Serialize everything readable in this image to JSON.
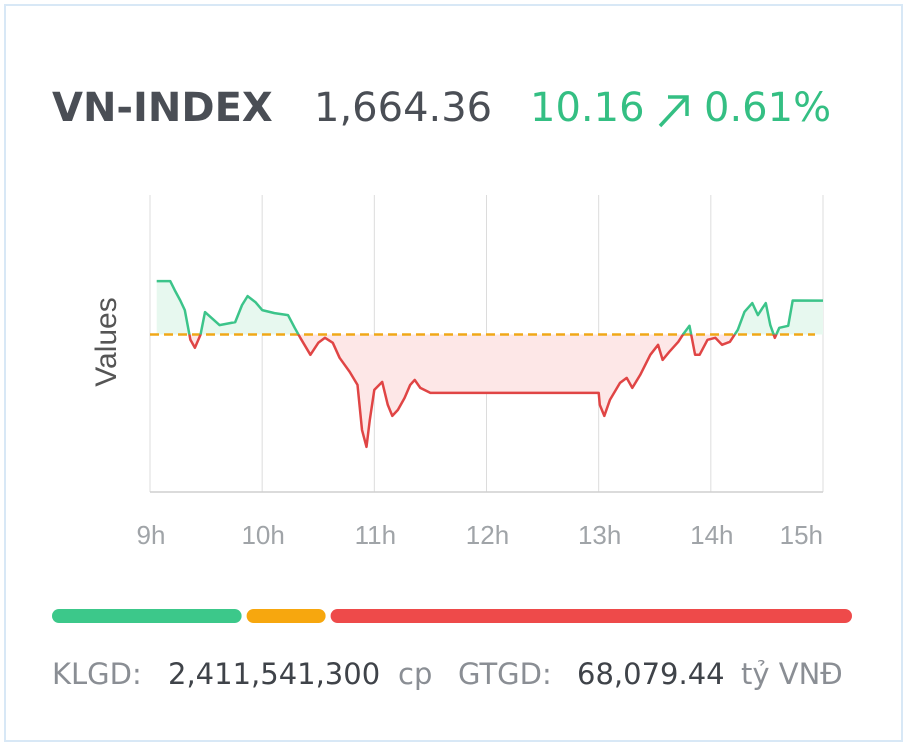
{
  "header": {
    "title": "VN-INDEX",
    "value": "1,664.36",
    "change": "10.16",
    "change_percent": "0.61%"
  },
  "chart_data": {
    "type": "line",
    "y_label": "Values",
    "x": [
      9.06,
      9.18,
      9.22,
      9.27,
      9.31,
      9.36,
      9.4,
      9.45,
      9.49,
      9.55,
      9.62,
      9.76,
      9.82,
      9.87,
      9.94,
      10.0,
      10.11,
      10.23,
      10.29,
      10.34,
      10.43,
      10.5,
      10.56,
      10.63,
      10.69,
      10.78,
      10.85,
      10.89,
      10.93,
      10.96,
      11.0,
      11.07,
      11.12,
      11.16,
      11.21,
      11.27,
      11.32,
      11.36,
      11.41,
      11.5,
      13.0,
      13.01,
      13.05,
      13.1,
      13.19,
      13.25,
      13.3,
      13.37,
      13.46,
      13.53,
      13.57,
      13.63,
      13.71,
      13.75,
      13.81,
      13.86,
      13.9,
      13.97,
      14.04,
      14.1,
      14.17,
      14.24,
      14.3,
      14.37,
      14.42,
      14.46,
      14.49,
      14.53,
      14.57,
      14.61,
      14.69,
      14.73,
      15.0
    ],
    "values": [
      1670.2,
      1670.2,
      1667.5,
      1664.4,
      1661.5,
      1652.6,
      1650.2,
      1654.1,
      1660.9,
      1659.1,
      1657.0,
      1657.9,
      1663.0,
      1665.7,
      1663.9,
      1661.5,
      1660.6,
      1660.0,
      1656.2,
      1653.2,
      1648.1,
      1651.7,
      1653.2,
      1651.7,
      1647.2,
      1643.0,
      1639.1,
      1625.6,
      1620.5,
      1628.6,
      1637.6,
      1640.0,
      1633.1,
      1629.8,
      1631.6,
      1635.2,
      1639.1,
      1640.6,
      1638.2,
      1636.7,
      1636.7,
      1633.1,
      1629.8,
      1634.6,
      1639.7,
      1641.2,
      1638.2,
      1642.1,
      1648.1,
      1651.1,
      1646.6,
      1649.0,
      1652.0,
      1654.1,
      1656.8,
      1648.1,
      1648.1,
      1652.6,
      1653.2,
      1651.1,
      1652.0,
      1655.6,
      1661.0,
      1663.6,
      1660.0,
      1662.1,
      1663.6,
      1657.0,
      1653.2,
      1656.2,
      1656.8,
      1664.4,
      1664.36
    ],
    "xlim": [
      9,
      15
    ],
    "xticks": [
      {
        "value": 9,
        "label": "9h"
      },
      {
        "value": 10,
        "label": "10h"
      },
      {
        "value": 11,
        "label": "11h"
      },
      {
        "value": 12,
        "label": "12h"
      },
      {
        "value": 13,
        "label": "13h"
      },
      {
        "value": 14,
        "label": "14h"
      },
      {
        "value": 15,
        "label": "15h"
      }
    ],
    "ylim": [
      1607,
      1696
    ],
    "reference": 1654.2,
    "grid": true,
    "colors": {
      "up": "#3cc48a",
      "down": "#e04545",
      "reference": "#f0a818",
      "up_fill": "#e7f8ef",
      "down_fill": "#fde7e7"
    }
  },
  "market_breadth": {
    "values": [
      24,
      10,
      66
    ],
    "colors": [
      "#3cc88a",
      "#f7a70e",
      "#ee4a4a"
    ]
  },
  "footer": {
    "volume_label": "KLGD:",
    "volume": "2,411,541,300",
    "volume_unit": "cp",
    "value_label": "GTGD:",
    "value": "68,079.44",
    "value_unit": "tỷ VNĐ"
  }
}
